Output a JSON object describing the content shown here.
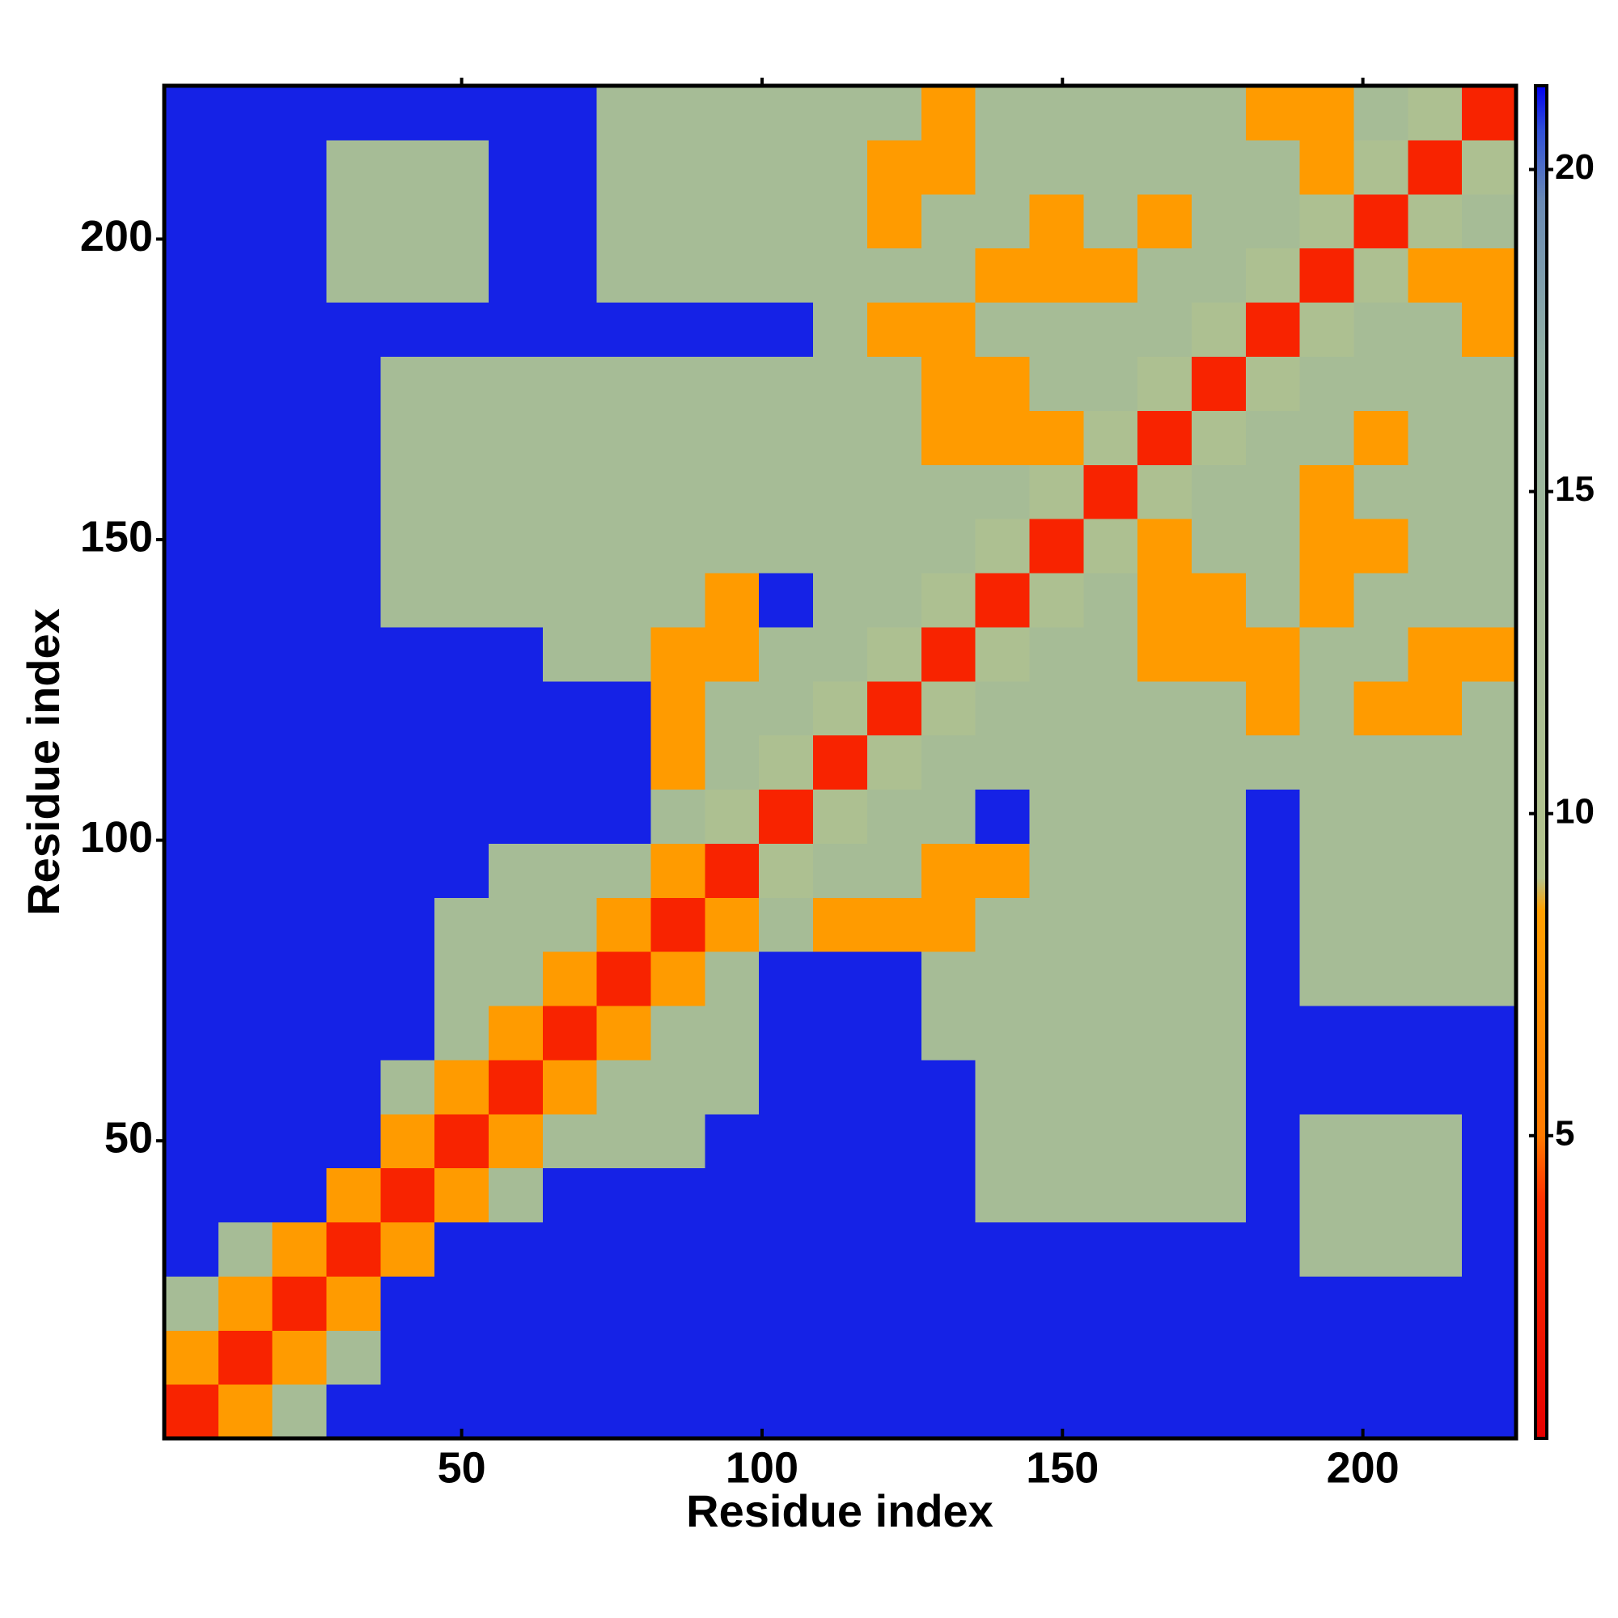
{
  "chart_data": {
    "type": "heatmap",
    "x_label": "Residue index",
    "y_label": "Residue index",
    "xlim": [
      0.5,
      225.5
    ],
    "ylim": [
      0.5,
      225.5
    ],
    "xticks": [
      50,
      100,
      150,
      200
    ],
    "yticks": [
      50,
      100,
      150,
      200
    ],
    "x_bins": [
      0.5,
      9.5,
      18.5,
      27.5,
      36.5,
      45.5,
      54.5,
      63.5,
      72.5,
      81.5,
      90.5,
      99.5,
      108.5,
      117.5,
      126.5,
      135.5,
      144.5,
      153.5,
      162.5,
      171.5,
      180.5,
      189.5,
      198.5,
      207.5,
      216.5,
      225.5
    ],
    "y_bins": [
      0.5,
      9.5,
      18.5,
      27.5,
      36.5,
      45.5,
      54.5,
      63.5,
      72.5,
      81.5,
      90.5,
      99.5,
      108.5,
      117.5,
      126.5,
      135.5,
      144.5,
      153.5,
      162.5,
      171.5,
      180.5,
      189.5,
      198.5,
      207.5,
      216.5,
      225.5
    ],
    "z": [
      [
        3,
        8,
        13,
        21,
        21,
        21,
        21,
        21,
        21,
        21,
        21,
        21,
        21,
        21,
        21,
        21,
        21,
        21,
        21,
        21,
        21,
        21,
        21,
        21,
        21
      ],
      [
        8,
        3,
        8,
        13,
        21,
        21,
        21,
        21,
        21,
        21,
        21,
        21,
        21,
        21,
        21,
        21,
        21,
        21,
        21,
        21,
        21,
        21,
        21,
        21,
        21
      ],
      [
        13,
        8,
        3,
        8,
        21,
        21,
        21,
        21,
        21,
        21,
        21,
        21,
        21,
        21,
        21,
        21,
        21,
        21,
        21,
        21,
        21,
        21,
        21,
        21,
        21
      ],
      [
        21,
        13,
        8,
        3,
        8,
        21,
        21,
        21,
        21,
        21,
        21,
        21,
        21,
        21,
        21,
        21,
        21,
        21,
        21,
        21,
        21,
        13,
        13,
        13,
        21
      ],
      [
        21,
        21,
        21,
        8,
        3,
        8,
        13,
        21,
        21,
        21,
        21,
        21,
        21,
        21,
        21,
        13,
        13,
        13,
        13,
        13,
        21,
        13,
        13,
        13,
        21
      ],
      [
        21,
        21,
        21,
        21,
        8,
        3,
        8,
        13,
        13,
        13,
        21,
        21,
        21,
        21,
        21,
        13,
        13,
        13,
        13,
        13,
        21,
        13,
        13,
        13,
        21
      ],
      [
        21,
        21,
        21,
        21,
        13,
        8,
        3,
        8,
        13,
        13,
        13,
        21,
        21,
        21,
        21,
        13,
        13,
        13,
        13,
        13,
        21,
        21,
        21,
        21,
        21
      ],
      [
        21,
        21,
        21,
        21,
        21,
        13,
        8,
        3,
        8,
        13,
        13,
        21,
        21,
        21,
        13,
        13,
        13,
        13,
        13,
        13,
        21,
        21,
        21,
        21,
        21
      ],
      [
        21,
        21,
        21,
        21,
        21,
        13,
        13,
        8,
        3,
        8,
        13,
        21,
        21,
        21,
        13,
        13,
        13,
        13,
        13,
        13,
        21,
        13,
        13,
        13,
        13
      ],
      [
        21,
        21,
        21,
        21,
        21,
        13,
        13,
        13,
        8,
        3,
        8,
        13,
        8,
        8,
        8,
        13,
        13,
        13,
        13,
        13,
        21,
        13,
        13,
        13,
        13
      ],
      [
        21,
        21,
        21,
        21,
        21,
        21,
        13,
        13,
        13,
        8,
        3,
        11,
        13,
        13,
        8,
        8,
        13,
        13,
        13,
        13,
        21,
        13,
        13,
        13,
        13
      ],
      [
        21,
        21,
        21,
        21,
        21,
        21,
        21,
        21,
        21,
        13,
        11,
        3,
        11,
        13,
        13,
        21,
        13,
        13,
        13,
        13,
        21,
        13,
        13,
        13,
        13
      ],
      [
        21,
        21,
        21,
        21,
        21,
        21,
        21,
        21,
        21,
        8,
        13,
        11,
        3,
        11,
        13,
        13,
        13,
        13,
        13,
        13,
        13,
        13,
        13,
        13,
        13
      ],
      [
        21,
        21,
        21,
        21,
        21,
        21,
        21,
        21,
        21,
        8,
        13,
        13,
        11,
        3,
        11,
        13,
        13,
        13,
        13,
        13,
        8,
        13,
        8,
        8,
        13
      ],
      [
        21,
        21,
        21,
        21,
        21,
        21,
        21,
        13,
        13,
        8,
        8,
        13,
        13,
        11,
        3,
        11,
        13,
        13,
        8,
        8,
        8,
        13,
        13,
        8,
        8
      ],
      [
        21,
        21,
        21,
        21,
        13,
        13,
        13,
        13,
        13,
        13,
        8,
        21,
        13,
        13,
        11,
        3,
        11,
        13,
        8,
        8,
        13,
        8,
        13,
        13,
        13
      ],
      [
        21,
        21,
        21,
        21,
        13,
        13,
        13,
        13,
        13,
        13,
        13,
        13,
        13,
        13,
        13,
        11,
        3,
        11,
        8,
        13,
        13,
        8,
        8,
        13,
        13
      ],
      [
        21,
        21,
        21,
        21,
        13,
        13,
        13,
        13,
        13,
        13,
        13,
        13,
        13,
        13,
        13,
        13,
        11,
        3,
        11,
        13,
        13,
        8,
        13,
        13,
        13
      ],
      [
        21,
        21,
        21,
        21,
        13,
        13,
        13,
        13,
        13,
        13,
        13,
        13,
        13,
        13,
        8,
        8,
        8,
        11,
        3,
        11,
        13,
        13,
        8,
        13,
        13
      ],
      [
        21,
        21,
        21,
        21,
        13,
        13,
        13,
        13,
        13,
        13,
        13,
        13,
        13,
        13,
        8,
        8,
        13,
        13,
        11,
        3,
        11,
        13,
        13,
        13,
        13
      ],
      [
        21,
        21,
        21,
        21,
        21,
        21,
        21,
        21,
        21,
        21,
        21,
        21,
        13,
        8,
        8,
        13,
        13,
        13,
        13,
        11,
        3,
        11,
        13,
        13,
        8
      ],
      [
        21,
        21,
        21,
        13,
        13,
        13,
        21,
        21,
        13,
        13,
        13,
        13,
        13,
        13,
        13,
        8,
        8,
        8,
        13,
        13,
        11,
        3,
        11,
        8,
        8
      ],
      [
        21,
        21,
        21,
        13,
        13,
        13,
        21,
        21,
        13,
        13,
        13,
        13,
        13,
        8,
        13,
        13,
        8,
        13,
        8,
        13,
        13,
        11,
        3,
        11,
        13
      ],
      [
        21,
        21,
        21,
        13,
        13,
        13,
        21,
        21,
        13,
        13,
        13,
        13,
        13,
        8,
        8,
        13,
        13,
        13,
        13,
        13,
        13,
        8,
        11,
        3,
        11
      ],
      [
        21,
        21,
        21,
        21,
        21,
        21,
        21,
        21,
        13,
        13,
        13,
        13,
        13,
        13,
        8,
        13,
        13,
        13,
        13,
        13,
        8,
        8,
        13,
        11,
        3
      ]
    ],
    "colorbar": {
      "range": [
        0.3,
        21.3
      ],
      "ticks": [
        5,
        10,
        15,
        20
      ]
    },
    "colorscale": [
      [
        0.3,
        "#e60000"
      ],
      [
        4,
        "#ff3000"
      ],
      [
        5,
        "#ff7a00"
      ],
      [
        8.5,
        "#ffa000"
      ],
      [
        9,
        "#b4c48c"
      ],
      [
        13,
        "#a6bc96"
      ],
      [
        17,
        "#94b2a4"
      ],
      [
        19.5,
        "#6a8ab4"
      ],
      [
        20.6,
        "#3050d8"
      ],
      [
        21.3,
        "#0000f0"
      ]
    ]
  }
}
